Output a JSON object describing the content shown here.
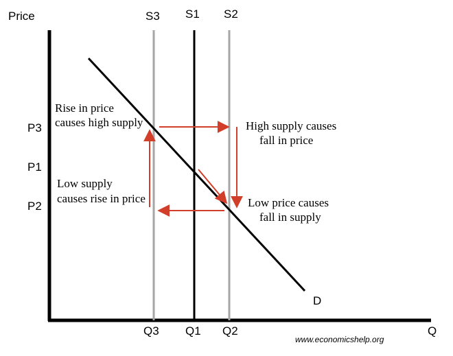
{
  "diagram": {
    "axis_y_label": "Price",
    "axis_x_label": "Q",
    "supply_lines": [
      {
        "label": "S3",
        "color": "#a6a6a6"
      },
      {
        "label": "S1",
        "color": "#000000"
      },
      {
        "label": "S2",
        "color": "#a6a6a6"
      }
    ],
    "price_labels": [
      "P3",
      "P1",
      "P2"
    ],
    "quantity_labels": [
      "Q3",
      "Q1",
      "Q2"
    ],
    "demand_label": "D",
    "annotations": {
      "rise_in_price": [
        "Rise in price",
        "causes high supply"
      ],
      "high_supply": [
        "High supply causes",
        "fall in price"
      ],
      "low_supply": [
        "Low supply",
        "causes rise in price"
      ],
      "low_price": [
        "Low price causes",
        "fall in supply"
      ]
    },
    "credit": "www.economicshelp.org",
    "colors": {
      "axis": "#000000",
      "demand": "#000000",
      "arrow": "#d13f2a"
    }
  }
}
